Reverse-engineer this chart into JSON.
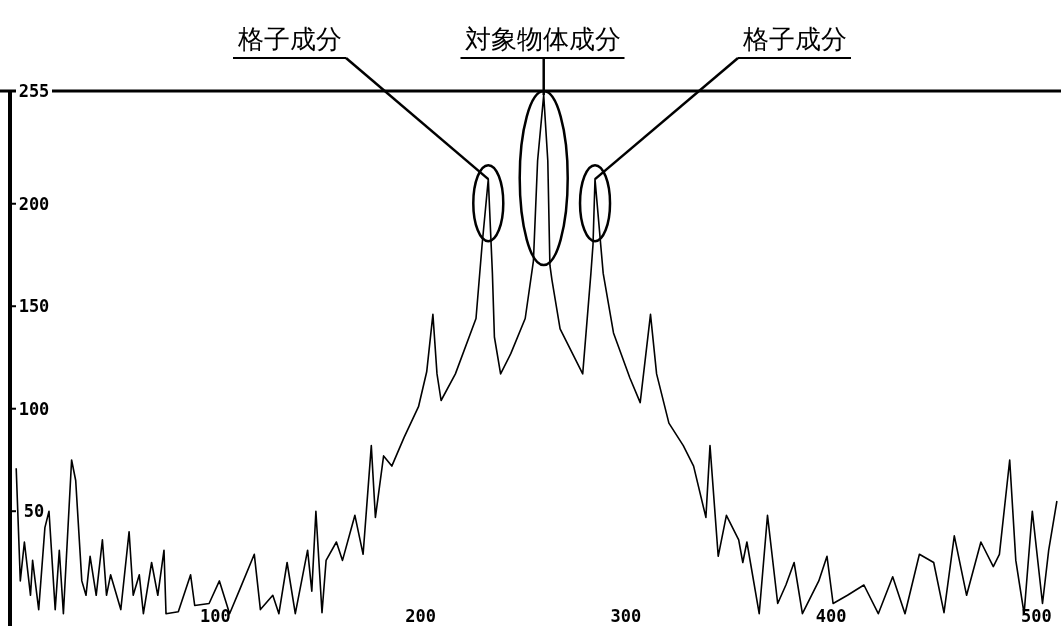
{
  "chart_data": {
    "type": "line",
    "x": [
      3,
      5,
      7,
      10,
      11,
      14,
      17,
      19,
      22,
      24,
      26,
      30,
      32,
      35,
      37,
      39,
      42,
      45,
      47,
      49,
      54,
      58,
      60,
      63,
      65,
      69,
      72,
      75,
      76,
      82,
      88,
      90,
      97,
      102,
      107,
      112,
      119,
      122,
      128,
      131,
      135,
      139,
      145,
      147,
      149,
      152,
      154,
      159,
      162,
      168,
      172,
      176,
      178,
      182,
      186,
      192,
      199,
      203,
      206,
      208,
      210,
      217,
      227,
      230,
      233,
      235,
      236,
      239,
      244,
      251,
      255,
      257,
      260,
      262,
      263,
      264,
      268,
      274,
      279,
      283,
      284,
      285,
      289,
      294,
      302,
      307,
      312,
      315,
      321,
      328,
      333,
      339,
      341,
      345,
      349,
      355,
      357,
      359,
      365,
      369,
      374,
      378,
      382,
      386,
      394,
      398,
      401,
      408,
      416,
      423,
      430,
      436,
      443,
      450,
      455,
      460,
      466,
      473,
      479,
      482,
      487,
      490,
      494,
      498,
      503,
      506,
      510
    ],
    "series": [
      {
        "color": "#000000",
        "values": [
          71,
          16,
          35,
          9,
          26,
          2,
          42,
          50,
          2,
          31,
          0,
          75,
          65,
          16,
          9,
          28,
          9,
          36,
          9,
          19,
          2,
          40,
          9,
          19,
          0,
          25,
          9,
          31,
          0,
          1,
          19,
          4,
          5,
          16,
          0,
          12,
          29,
          2,
          9,
          0,
          25,
          0,
          31,
          11,
          50,
          0.5,
          26,
          35,
          26,
          48,
          29,
          82,
          47,
          77,
          72,
          86,
          101,
          118,
          146,
          117,
          104,
          117,
          144,
          180,
          212,
          166,
          135,
          117,
          127,
          144,
          172,
          221,
          253,
          221,
          170,
          163,
          139,
          127,
          117,
          166,
          180,
          212,
          166,
          137,
          115,
          103,
          146,
          117,
          93,
          82,
          72,
          47,
          82,
          28,
          48,
          36,
          25,
          35,
          0,
          48,
          5,
          14,
          25,
          0,
          16,
          28,
          5,
          9,
          14,
          0,
          18,
          0,
          29,
          25,
          0.5,
          38,
          9,
          35,
          23,
          29,
          75,
          26,
          0,
          50,
          5,
          31,
          55
        ]
      }
    ],
    "xlim": [
      0,
      512
    ],
    "ylim": [
      -6,
      255
    ],
    "xticks": [
      100,
      200,
      300,
      400,
      500
    ],
    "yticks": [
      50,
      100,
      150,
      200,
      255
    ],
    "line_style": "solid",
    "marker": "none",
    "annotations": [
      {
        "text": "格子成分",
        "x": 233,
        "y": 212
      },
      {
        "text": "対象物体成分",
        "x": 260,
        "y": 253
      },
      {
        "text": "格子成分",
        "x": 285,
        "y": 212
      }
    ]
  }
}
